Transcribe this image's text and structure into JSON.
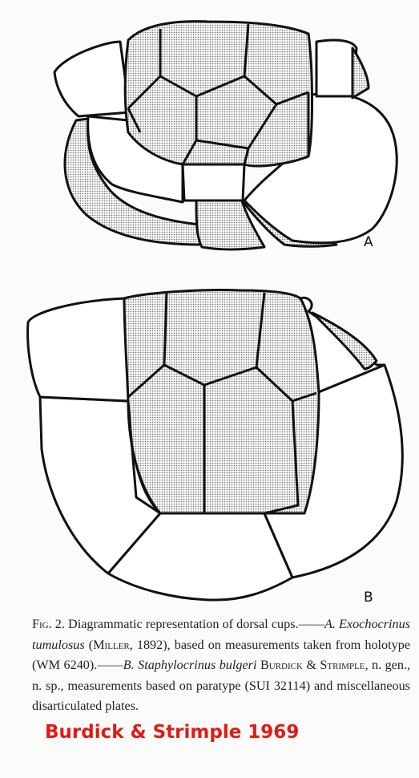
{
  "figure": {
    "panel_a_label": "A",
    "panel_b_label": "B",
    "stipple_color": "#8a8a8a",
    "line_color": "#111111"
  },
  "caption": {
    "fig": "Fig. 2.",
    "intro": "Diagrammatic representation of dorsal cups.",
    "dash_a": "——",
    "label_a": "A.",
    "species_a": "Exochocrinus tumulosus",
    "authority_a_open": "(",
    "authority_a_name": "Miller",
    "authority_a_rest": ", 1892), based on measurements taken from holotype (WM 6240).",
    "dash_b": "——",
    "label_b": "B.",
    "species_b": "Staphylocrinus bulgeri",
    "authority_b": "Burdick & Strimple",
    "rest_b": ", n. gen., n. sp., measurements based on paratype (SUI 32114) and miscellaneous disarticulated plates."
  },
  "credit": "Burdick & Strimple 1969"
}
